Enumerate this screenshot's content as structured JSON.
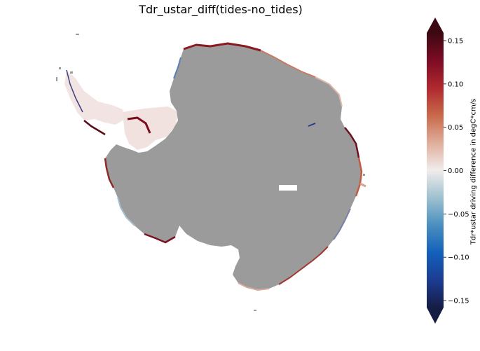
{
  "title": "Tdr_ustar_diff(tides-no_tides)",
  "colorbar": {
    "label": "Tdr*ustar driving difference in degC*cm/s",
    "ticks": [
      "0.15",
      "0.10",
      "0.05",
      "0.00",
      "−0.05",
      "−0.10",
      "−0.15"
    ],
    "extend": "both",
    "colormap": "balance (blue-white-red)",
    "colors": [
      "#151d44",
      "#1c3c92",
      "#1360bb",
      "#4a8fbf",
      "#9ec1cf",
      "#f1ecec",
      "#dfae9b",
      "#c8694a",
      "#b0282f",
      "#7c0c24",
      "#3c0912"
    ]
  },
  "map": {
    "region": "Antarctica",
    "land_color": "#9b9b9b",
    "background_color": "#ffffff"
  }
}
